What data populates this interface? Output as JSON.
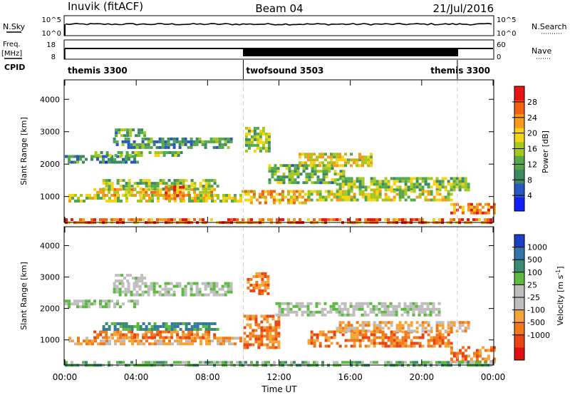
{
  "header": {
    "station": "Inuvik (fitACF)",
    "beam": "Beam 04",
    "date": "21/Jul/2016"
  },
  "panels": {
    "nsky": {
      "label": "N.Sky",
      "ticks": [
        "10^5",
        "10^0"
      ],
      "right_label": "N.Search",
      "right_ticks": [
        "10^5",
        "10^0"
      ]
    },
    "freq": {
      "label_1": "Freq.",
      "label_2": "[MHz]",
      "ticks": [
        "18",
        "8"
      ],
      "right_label": "Nave",
      "right_ticks": [
        "60",
        "0"
      ]
    },
    "cpid": {
      "label": "CPID",
      "segments": [
        {
          "name": "themis 3300",
          "start": 0,
          "end": 10
        },
        {
          "name": "twofsound 3503",
          "start": 10,
          "end": 22
        },
        {
          "name": "themis 3300",
          "start": 22,
          "end": 24
        }
      ]
    }
  },
  "colors": {
    "power": [
      "#0f1fff",
      "#2458c4",
      "#3b8a64",
      "#55a84a",
      "#a5c81c",
      "#f4d418",
      "#f59a1a",
      "#f36010",
      "#e81414"
    ],
    "velocity": [
      "#1d3fc8",
      "#2f76ad",
      "#3a8c70",
      "#5cba3e",
      "#bebebe",
      "#bebebe",
      "#f5a43a",
      "#f07818",
      "#ea4412",
      "#e01010"
    ]
  },
  "chart_data": [
    {
      "type": "heatmap",
      "name": "power",
      "ylabel": "Slant Range [km]",
      "xlim": [
        0,
        24
      ],
      "ylim": [
        200,
        4600
      ],
      "yticks": [
        "1000",
        "2000",
        "3000",
        "4000"
      ],
      "colorbar": {
        "label": "Power [dB]",
        "range": [
          0,
          32
        ],
        "tick_values": [
          4,
          8,
          12,
          16,
          20,
          24,
          28
        ],
        "ticks": [
          "4",
          "8",
          "12",
          "16",
          "20",
          "24",
          "28"
        ]
      },
      "bands": [
        {
          "t": [
            0,
            4
          ],
          "r": [
            2050,
            2280
          ],
          "v": 9
        },
        {
          "t": [
            1.5,
            6.5
          ],
          "r": [
            2250,
            2400
          ],
          "v": 13
        },
        {
          "t": [
            2.7,
            9.4
          ],
          "r": [
            2500,
            2820
          ],
          "v": 10
        },
        {
          "t": [
            2.8,
            4.5
          ],
          "r": [
            2850,
            3100
          ],
          "v": 12
        },
        {
          "t": [
            0.2,
            9.8
          ],
          "r": [
            850,
            1080
          ],
          "v": 17
        },
        {
          "t": [
            1.6,
            8.4
          ],
          "r": [
            1080,
            1260
          ],
          "v": 21
        },
        {
          "t": [
            2.1,
            8.6
          ],
          "r": [
            1250,
            1540
          ],
          "v": 15
        },
        {
          "t": [
            5.6,
            6.6
          ],
          "r": [
            960,
            1330
          ],
          "v": 27
        },
        {
          "t": [
            9.9,
            13.6
          ],
          "r": [
            800,
            1200
          ],
          "v": 22
        },
        {
          "t": [
            10.1,
            11.4
          ],
          "r": [
            2400,
            3150
          ],
          "v": 15
        },
        {
          "t": [
            11.4,
            15.6
          ],
          "r": [
            1400,
            2000
          ],
          "v": 13
        },
        {
          "t": [
            13.1,
            17.2
          ],
          "r": [
            1950,
            2350
          ],
          "v": 19
        },
        {
          "t": [
            15.2,
            22.6
          ],
          "r": [
            1200,
            1600
          ],
          "v": 14
        },
        {
          "t": [
            13.6,
            21.6
          ],
          "r": [
            850,
            1200
          ],
          "v": 18
        },
        {
          "t": [
            21.6,
            24
          ],
          "r": [
            460,
            800
          ],
          "v": 25
        },
        {
          "t": [
            0,
            24
          ],
          "r": [
            200,
            330
          ],
          "v": 26
        }
      ]
    },
    {
      "type": "heatmap",
      "name": "velocity",
      "xlabel": "Time UT",
      "ylabel": "Slant Range [km]",
      "xlim": [
        0,
        24
      ],
      "ylim": [
        200,
        4600
      ],
      "xticks": [
        "00:00",
        "04:00",
        "08:00",
        "12:00",
        "16:00",
        "20:00",
        "00:00"
      ],
      "yticks": [
        "1000",
        "2000",
        "3000",
        "4000"
      ],
      "colorbar": {
        "label": "Velocity [m s",
        "exponent": "-1",
        "ticks": [
          "1000",
          "500",
          "100",
          "25",
          "-25",
          "-100",
          "-500",
          "-1000"
        ]
      },
      "bands": [
        {
          "t": [
            0,
            4
          ],
          "r": [
            2050,
            2280
          ],
          "v": 4
        },
        {
          "t": [
            2.7,
            9.4
          ],
          "r": [
            2420,
            2840
          ],
          "v": 4
        },
        {
          "t": [
            2.8,
            4.5
          ],
          "r": [
            2850,
            3100
          ],
          "v": 4
        },
        {
          "t": [
            0.2,
            9.8
          ],
          "r": [
            850,
            1100
          ],
          "v": 6
        },
        {
          "t": [
            1.6,
            8.4
          ],
          "r": [
            1100,
            1300
          ],
          "v": 7
        },
        {
          "t": [
            2.1,
            8.6
          ],
          "r": [
            1300,
            1560
          ],
          "v": 2
        },
        {
          "t": [
            10,
            12
          ],
          "r": [
            800,
            1800
          ],
          "v": 7
        },
        {
          "t": [
            10.2,
            11.4
          ],
          "r": [
            2500,
            3150
          ],
          "v": 7
        },
        {
          "t": [
            11.8,
            21
          ],
          "r": [
            1750,
            2200
          ],
          "v": 4
        },
        {
          "t": [
            13.6,
            21.6
          ],
          "r": [
            800,
            1300
          ],
          "v": 7
        },
        {
          "t": [
            15.2,
            22.6
          ],
          "r": [
            1300,
            1600
          ],
          "v": 6
        },
        {
          "t": [
            21.6,
            24
          ],
          "r": [
            300,
            800
          ],
          "v": 7
        },
        {
          "t": [
            0,
            24
          ],
          "r": [
            200,
            330
          ],
          "v": 3
        }
      ]
    }
  ]
}
